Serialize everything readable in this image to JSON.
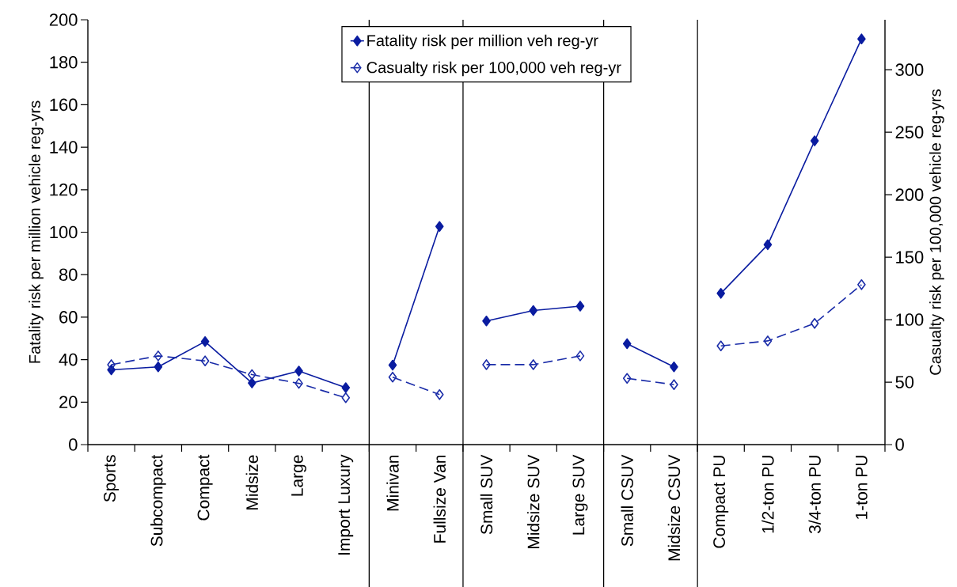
{
  "chart_data": {
    "type": "line",
    "categories": [
      "Sports",
      "Subcompact",
      "Compact",
      "Midsize",
      "Large",
      "Import Luxury",
      "Minivan",
      "Fullsize Van",
      "Small SUV",
      "Midsize SUV",
      "Large SUV",
      "Small CSUV",
      "Midsize CSUV",
      "Compact PU",
      "1/2-ton PU",
      "3/4-ton PU",
      "1-ton PU"
    ],
    "series": [
      {
        "name": "Fatality risk per million veh reg-yr",
        "color": "#0a1ca0",
        "marker": "diamond",
        "line_style": "solid",
        "values": [
          35.2,
          36.6,
          48.5,
          29,
          34.6,
          26.8,
          37.4,
          102.7,
          58.2,
          63.1,
          65.2,
          47.5,
          36.6,
          71.2,
          94.1,
          143,
          191
        ]
      },
      {
        "name": "Casualty risk per 100,000 veh reg-yr",
        "color": "#1a2ca8",
        "marker": "diamond",
        "line_style": "dashed",
        "axis": "y2",
        "values": [
          64,
          71,
          67,
          56,
          49,
          37.5,
          54,
          40,
          64,
          64,
          71,
          53,
          48,
          79,
          83,
          97,
          128
        ]
      }
    ],
    "ylabel": "Fatality risk per million vehicle reg-yrs",
    "y2label": "Casualty risk per 100,000 vehicle reg-yrs",
    "ylim": [
      0,
      200
    ],
    "yticks": [
      0,
      20,
      40,
      60,
      80,
      100,
      120,
      140,
      160,
      180,
      200
    ],
    "y2lim": [
      0,
      340
    ],
    "y2ticks": [
      0,
      50,
      100,
      150,
      200,
      250,
      300
    ],
    "legend": "top"
  }
}
